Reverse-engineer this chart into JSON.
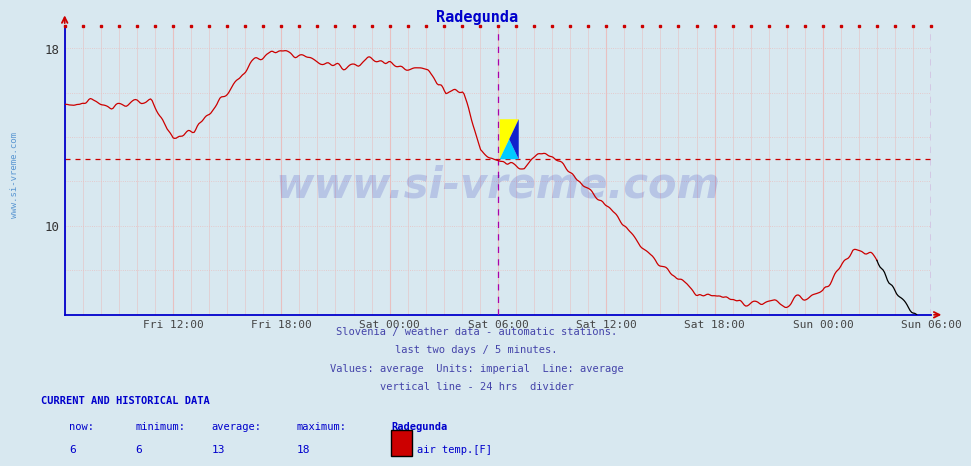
{
  "title": "Radegunda",
  "title_color": "#0000cc",
  "bg_color": "#d8e8f0",
  "plot_bg_color": "#d8e8f0",
  "ylim_min": 6,
  "ylim_max": 19,
  "ytick_values": [
    10,
    18
  ],
  "xlabel_ticks": [
    "Fri 12:00",
    "Fri 18:00",
    "Sat 00:00",
    "Sat 06:00",
    "Sat 12:00",
    "Sat 18:00",
    "Sun 00:00",
    "Sun 06:00"
  ],
  "xtick_positions": [
    0.125,
    0.25,
    0.375,
    0.5,
    0.625,
    0.75,
    0.875,
    1.0
  ],
  "line_color": "#cc0000",
  "black_line_color": "#000000",
  "avg_line_color": "#cc0000",
  "avg_line_value": 13,
  "vline_color": "#aa00aa",
  "vline_positions": [
    0.5,
    1.0
  ],
  "grid_v_color": "#e8c0c0",
  "grid_h_color": "#e8c0c0",
  "axis_color": "#0000cc",
  "watermark_text": "www.si-vreme.com",
  "watermark_color": "#0000aa",
  "watermark_alpha": 0.15,
  "subtitle_lines": [
    "Slovenia / weather data - automatic stations.",
    "last two days / 5 minutes.",
    "Values: average  Units: imperial  Line: average",
    "vertical line - 24 hrs  divider"
  ],
  "subtitle_color": "#4444aa",
  "footer_title": "CURRENT AND HISTORICAL DATA",
  "footer_color": "#0000cc",
  "stats_values": [
    "6",
    "6",
    "13",
    "18"
  ],
  "legend_label": "air temp.[F]",
  "legend_color": "#cc0000",
  "sidebar_text": "www.si-vreme.com",
  "sidebar_color": "#4488cc",
  "black_threshold": 0.937
}
